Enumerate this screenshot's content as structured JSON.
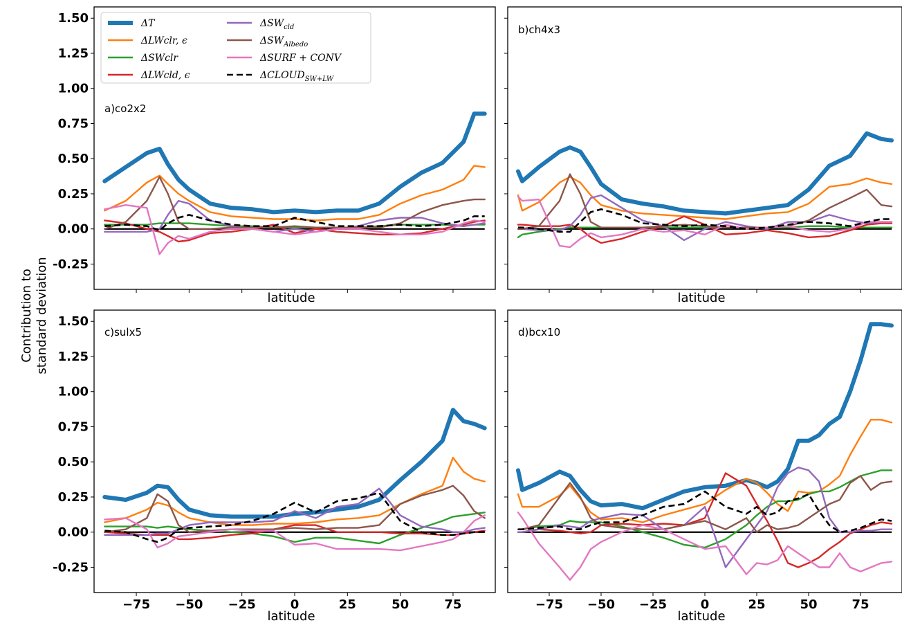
{
  "ylabel": [
    "Contribution to",
    "standard deviation"
  ],
  "xlabel": "latitude",
  "legend": [
    {
      "label": "ΔT",
      "color": "#1f77b4",
      "style": "thick"
    },
    {
      "label": "ΔLWclr,ϵ",
      "color": "#ff7f0e",
      "style": "solid"
    },
    {
      "label": "ΔSWclr",
      "color": "#2ca02c",
      "style": "solid"
    },
    {
      "label": "ΔLWcld,ϵ",
      "color": "#d62728",
      "style": "solid"
    },
    {
      "label": "ΔSWcld",
      "color": "#9467bd",
      "style": "solid"
    },
    {
      "label": "ΔSWAlbedo",
      "color": "#8c564b",
      "style": "solid"
    },
    {
      "label": "ΔSURF + CONV",
      "color": "#e377c2",
      "style": "solid"
    },
    {
      "label": "ΔCLOUDSW+LW",
      "color": "#000000",
      "style": "dashed"
    }
  ],
  "chart_data": [
    {
      "type": "line",
      "title": "a)co2x2",
      "xlabel": "latitude",
      "xlim": [
        -95,
        95
      ],
      "ylim": [
        -0.43,
        1.58
      ],
      "x": [
        -90,
        -80,
        -70,
        -64,
        -60,
        -55,
        -50,
        -40,
        -30,
        -20,
        -10,
        0,
        10,
        20,
        30,
        40,
        50,
        60,
        70,
        80,
        85,
        90
      ],
      "series": [
        {
          "name": "ΔT",
          "values": [
            0.34,
            0.44,
            0.54,
            0.57,
            0.46,
            0.35,
            0.28,
            0.18,
            0.15,
            0.14,
            0.12,
            0.13,
            0.12,
            0.13,
            0.13,
            0.18,
            0.3,
            0.4,
            0.47,
            0.62,
            0.82,
            0.82
          ]
        },
        {
          "name": "ΔLWclr,ϵ",
          "values": [
            0.13,
            0.2,
            0.33,
            0.38,
            0.32,
            0.25,
            0.2,
            0.12,
            0.09,
            0.08,
            0.07,
            0.07,
            0.06,
            0.07,
            0.07,
            0.1,
            0.18,
            0.24,
            0.28,
            0.35,
            0.45,
            0.44
          ]
        },
        {
          "name": "ΔSWclr",
          "values": [
            0.03,
            0.03,
            0.03,
            0.04,
            0.04,
            0.04,
            0.04,
            0.03,
            0.02,
            0.02,
            0.01,
            0.01,
            0.01,
            0.01,
            0.01,
            0.02,
            0.03,
            0.03,
            0.03,
            0.02,
            0.03,
            0.03
          ]
        },
        {
          "name": "ΔLWcld,ϵ",
          "values": [
            0.06,
            0.04,
            0.0,
            -0.02,
            -0.05,
            -0.09,
            -0.08,
            -0.03,
            -0.02,
            0.0,
            0.03,
            -0.03,
            0.0,
            -0.02,
            -0.03,
            -0.04,
            -0.04,
            -0.03,
            0.0,
            0.03,
            0.05,
            0.06
          ]
        },
        {
          "name": "ΔSWcld",
          "values": [
            -0.02,
            -0.02,
            -0.02,
            0.0,
            0.1,
            0.2,
            0.18,
            0.06,
            0.02,
            0.0,
            -0.02,
            0.0,
            -0.02,
            0.0,
            0.02,
            0.06,
            0.08,
            0.08,
            0.04,
            0.02,
            0.03,
            0.04
          ]
        },
        {
          "name": "ΔSWAlbedo",
          "values": [
            0.0,
            0.05,
            0.2,
            0.37,
            0.25,
            0.05,
            0.0,
            0.0,
            0.01,
            0.01,
            0.01,
            0.02,
            0.01,
            0.01,
            0.01,
            0.01,
            0.04,
            0.12,
            0.17,
            0.2,
            0.21,
            0.21
          ]
        },
        {
          "name": "ΔSURF + CONV",
          "values": [
            0.14,
            0.17,
            0.15,
            -0.18,
            -0.1,
            -0.05,
            -0.07,
            -0.02,
            0.0,
            0.0,
            -0.02,
            -0.04,
            -0.02,
            0.0,
            0.0,
            -0.02,
            -0.04,
            -0.04,
            -0.02,
            0.04,
            0.06,
            0.05
          ]
        },
        {
          "name": "ΔCLOUDSW+LW",
          "values": [
            0.02,
            0.03,
            0.02,
            -0.01,
            0.04,
            0.08,
            0.1,
            0.06,
            0.03,
            0.02,
            0.02,
            0.08,
            0.05,
            0.02,
            0.02,
            0.02,
            0.03,
            0.02,
            0.03,
            0.06,
            0.09,
            0.09
          ]
        }
      ]
    },
    {
      "type": "line",
      "title": "b)ch4x3",
      "xlabel": "latitude",
      "xlim": [
        -95,
        95
      ],
      "ylim": [
        -0.43,
        1.58
      ],
      "x": [
        -90,
        -88,
        -80,
        -70,
        -65,
        -60,
        -55,
        -50,
        -40,
        -30,
        -20,
        -10,
        0,
        10,
        20,
        30,
        40,
        50,
        60,
        70,
        78,
        85,
        90
      ],
      "series": [
        {
          "name": "ΔT",
          "values": [
            0.41,
            0.34,
            0.44,
            0.55,
            0.58,
            0.55,
            0.44,
            0.32,
            0.21,
            0.18,
            0.16,
            0.13,
            0.12,
            0.11,
            0.13,
            0.15,
            0.17,
            0.28,
            0.45,
            0.52,
            0.68,
            0.64,
            0.63
          ]
        },
        {
          "name": "ΔLWclr,ϵ",
          "values": [
            0.24,
            0.13,
            0.19,
            0.33,
            0.37,
            0.33,
            0.24,
            0.17,
            0.13,
            0.11,
            0.1,
            0.09,
            0.08,
            0.07,
            0.09,
            0.11,
            0.12,
            0.18,
            0.3,
            0.32,
            0.36,
            0.33,
            0.32
          ]
        },
        {
          "name": "ΔSWclr",
          "values": [
            -0.06,
            -0.04,
            -0.02,
            0.0,
            0.01,
            0.01,
            0.01,
            0.01,
            0.01,
            0.01,
            0.01,
            0.01,
            0.01,
            0.01,
            0.01,
            0.01,
            0.01,
            0.02,
            0.02,
            0.01,
            0.01,
            0.01,
            0.01
          ]
        },
        {
          "name": "ΔLWcld,ϵ",
          "values": [
            0.03,
            0.03,
            0.02,
            0.02,
            0.03,
            0.0,
            -0.06,
            -0.1,
            -0.07,
            -0.02,
            0.02,
            0.09,
            0.03,
            -0.04,
            -0.03,
            -0.01,
            -0.03,
            -0.06,
            -0.05,
            -0.01,
            0.03,
            0.04,
            0.04
          ]
        },
        {
          "name": "ΔSWcld",
          "values": [
            0.0,
            0.0,
            -0.01,
            -0.01,
            0.02,
            0.1,
            0.22,
            0.24,
            0.15,
            0.06,
            0.02,
            -0.08,
            0.0,
            0.05,
            0.02,
            0.0,
            0.05,
            0.05,
            0.1,
            0.06,
            0.04,
            0.05,
            0.05
          ]
        },
        {
          "name": "ΔSWAlbedo",
          "values": [
            0.0,
            0.0,
            0.02,
            0.2,
            0.39,
            0.25,
            0.05,
            0.01,
            0.01,
            0.01,
            0.02,
            0.03,
            0.02,
            0.01,
            0.01,
            0.01,
            0.02,
            0.06,
            0.15,
            0.22,
            0.28,
            0.17,
            0.16
          ]
        },
        {
          "name": "ΔSURF + CONV",
          "values": [
            0.23,
            0.2,
            0.21,
            -0.12,
            -0.13,
            -0.07,
            -0.03,
            -0.06,
            -0.04,
            0.0,
            -0.02,
            -0.01,
            -0.04,
            0.03,
            0.0,
            0.01,
            0.02,
            -0.01,
            -0.02,
            0.0,
            0.05,
            0.05,
            0.05
          ]
        },
        {
          "name": "ΔCLOUDSW+LW",
          "values": [
            0.01,
            0.01,
            0.0,
            -0.02,
            -0.02,
            0.05,
            0.12,
            0.14,
            0.1,
            0.04,
            0.03,
            0.02,
            0.03,
            0.02,
            0.0,
            0.01,
            0.03,
            0.05,
            0.04,
            0.02,
            0.05,
            0.07,
            0.07
          ]
        }
      ]
    },
    {
      "type": "line",
      "title": "c)sulx5",
      "xlabel": "latitude",
      "xlim": [
        -95,
        95
      ],
      "ylim": [
        -0.43,
        1.58
      ],
      "x": [
        -90,
        -80,
        -70,
        -65,
        -60,
        -55,
        -50,
        -40,
        -30,
        -20,
        -10,
        0,
        10,
        20,
        30,
        40,
        50,
        60,
        70,
        75,
        80,
        85,
        90
      ],
      "series": [
        {
          "name": "ΔT",
          "values": [
            0.25,
            0.23,
            0.28,
            0.33,
            0.32,
            0.23,
            0.16,
            0.12,
            0.11,
            0.11,
            0.11,
            0.13,
            0.14,
            0.16,
            0.18,
            0.23,
            0.37,
            0.5,
            0.65,
            0.87,
            0.79,
            0.77,
            0.74
          ]
        },
        {
          "name": "ΔLWclr,ϵ",
          "values": [
            0.07,
            0.1,
            0.16,
            0.21,
            0.19,
            0.14,
            0.1,
            0.07,
            0.05,
            0.05,
            0.06,
            0.06,
            0.07,
            0.09,
            0.1,
            0.12,
            0.2,
            0.27,
            0.33,
            0.53,
            0.43,
            0.38,
            0.36
          ]
        },
        {
          "name": "ΔSWclr",
          "values": [
            0.04,
            0.04,
            0.04,
            0.03,
            0.04,
            0.03,
            0.02,
            0.01,
            0.0,
            -0.01,
            -0.03,
            -0.07,
            -0.04,
            -0.04,
            -0.06,
            -0.08,
            -0.02,
            0.03,
            0.08,
            0.11,
            0.12,
            0.13,
            0.14
          ]
        },
        {
          "name": "ΔLWcld,ϵ",
          "values": [
            0.0,
            -0.01,
            -0.02,
            -0.02,
            -0.02,
            -0.05,
            -0.05,
            -0.04,
            -0.02,
            -0.01,
            0.02,
            0.05,
            0.05,
            0.0,
            0.0,
            0.0,
            -0.01,
            -0.01,
            -0.02,
            -0.02,
            -0.01,
            0.0,
            0.01
          ]
        },
        {
          "name": "ΔSWcld",
          "values": [
            -0.02,
            -0.02,
            -0.02,
            -0.01,
            -0.01,
            0.02,
            0.05,
            0.07,
            0.07,
            0.07,
            0.08,
            0.15,
            0.1,
            0.18,
            0.2,
            0.31,
            0.12,
            0.04,
            0.02,
            0.0,
            0.0,
            0.02,
            0.03
          ]
        },
        {
          "name": "ΔSWAlbedo",
          "values": [
            0.0,
            0.02,
            0.1,
            0.27,
            0.22,
            0.05,
            0.0,
            0.01,
            0.02,
            0.02,
            0.02,
            0.03,
            0.02,
            0.03,
            0.03,
            0.05,
            0.2,
            0.26,
            0.3,
            0.33,
            0.26,
            0.15,
            0.1
          ]
        },
        {
          "name": "ΔSURF + CONV",
          "values": [
            0.09,
            0.1,
            0.02,
            -0.11,
            -0.08,
            -0.03,
            -0.02,
            0.0,
            0.02,
            0.01,
            0.01,
            -0.09,
            -0.08,
            -0.12,
            -0.12,
            -0.12,
            -0.13,
            -0.1,
            -0.07,
            -0.05,
            0.0,
            0.08,
            0.12
          ]
        },
        {
          "name": "ΔCLOUDSW+LW",
          "values": [
            0.01,
            0.0,
            -0.05,
            -0.07,
            -0.04,
            0.02,
            0.03,
            0.04,
            0.05,
            0.08,
            0.13,
            0.21,
            0.14,
            0.22,
            0.24,
            0.28,
            0.08,
            0.0,
            -0.02,
            -0.02,
            -0.01,
            0.0,
            0.0
          ]
        }
      ]
    },
    {
      "type": "line",
      "title": "d)bcx10",
      "xlabel": "latitude",
      "xlim": [
        -95,
        95
      ],
      "ylim": [
        -0.43,
        1.58
      ],
      "x": [
        -90,
        -88,
        -80,
        -70,
        -65,
        -60,
        -55,
        -50,
        -40,
        -30,
        -20,
        -10,
        0,
        10,
        20,
        25,
        30,
        35,
        40,
        45,
        50,
        55,
        60,
        65,
        70,
        75,
        80,
        85,
        90
      ],
      "series": [
        {
          "name": "ΔT",
          "values": [
            0.44,
            0.3,
            0.35,
            0.43,
            0.4,
            0.3,
            0.22,
            0.19,
            0.2,
            0.17,
            0.23,
            0.29,
            0.32,
            0.33,
            0.37,
            0.35,
            0.32,
            0.36,
            0.45,
            0.65,
            0.65,
            0.69,
            0.77,
            0.82,
            1.0,
            1.22,
            1.48,
            1.48,
            1.47
          ]
        },
        {
          "name": "ΔLWclr,ϵ",
          "values": [
            0.27,
            0.18,
            0.18,
            0.26,
            0.33,
            0.24,
            0.14,
            0.09,
            0.1,
            0.07,
            0.12,
            0.16,
            0.2,
            0.3,
            0.38,
            0.35,
            0.28,
            0.2,
            0.15,
            0.29,
            0.28,
            0.29,
            0.34,
            0.4,
            0.55,
            0.68,
            0.8,
            0.8,
            0.78
          ]
        },
        {
          "name": "ΔSWclr",
          "values": [
            0.02,
            0.02,
            0.04,
            0.05,
            0.08,
            0.07,
            0.07,
            0.07,
            0.04,
            0.0,
            -0.04,
            -0.09,
            -0.11,
            -0.05,
            0.05,
            0.12,
            0.18,
            0.22,
            0.22,
            0.23,
            0.27,
            0.29,
            0.29,
            0.32,
            0.36,
            0.4,
            0.42,
            0.44,
            0.44
          ]
        },
        {
          "name": "ΔLWcld,ϵ",
          "values": [
            0.0,
            0.0,
            0.02,
            0.01,
            0.0,
            -0.01,
            0.0,
            0.05,
            0.06,
            0.05,
            0.06,
            0.05,
            0.1,
            0.42,
            0.33,
            0.2,
            0.08,
            -0.06,
            -0.22,
            -0.25,
            -0.22,
            -0.18,
            -0.12,
            -0.07,
            -0.01,
            0.02,
            0.05,
            0.07,
            0.06
          ]
        },
        {
          "name": "ΔSWcld",
          "values": [
            0.0,
            0.0,
            0.02,
            0.05,
            0.04,
            0.03,
            0.08,
            0.1,
            0.13,
            0.12,
            0.02,
            0.05,
            0.18,
            -0.25,
            -0.05,
            0.05,
            0.15,
            0.32,
            0.42,
            0.46,
            0.44,
            0.36,
            0.1,
            0.0,
            0.0,
            0.01,
            0.01,
            0.02,
            0.02
          ]
        },
        {
          "name": "ΔSWAlbedo",
          "values": [
            0.02,
            0.02,
            0.05,
            0.25,
            0.35,
            0.25,
            0.1,
            0.05,
            0.03,
            0.02,
            0.02,
            0.05,
            0.08,
            0.02,
            0.1,
            0.0,
            0.05,
            0.02,
            0.03,
            0.05,
            0.1,
            0.15,
            0.2,
            0.23,
            0.35,
            0.4,
            0.3,
            0.35,
            0.36
          ]
        },
        {
          "name": "ΔSURF + CONV",
          "values": [
            0.14,
            0.1,
            -0.08,
            -0.25,
            -0.34,
            -0.25,
            -0.12,
            -0.07,
            0.0,
            0.05,
            0.02,
            -0.05,
            -0.12,
            -0.1,
            -0.3,
            -0.22,
            -0.23,
            -0.2,
            -0.1,
            -0.15,
            -0.2,
            -0.25,
            -0.25,
            -0.15,
            -0.25,
            -0.28,
            -0.25,
            -0.22,
            -0.21
          ]
        },
        {
          "name": "ΔCLOUDSW+LW",
          "values": [
            0.02,
            0.02,
            0.03,
            0.04,
            0.02,
            0.02,
            0.05,
            0.07,
            0.07,
            0.12,
            0.18,
            0.2,
            0.29,
            0.18,
            0.13,
            0.18,
            0.12,
            0.14,
            0.22,
            0.24,
            0.27,
            0.15,
            0.05,
            0.0,
            0.01,
            0.03,
            0.06,
            0.09,
            0.08
          ]
        }
      ]
    }
  ]
}
